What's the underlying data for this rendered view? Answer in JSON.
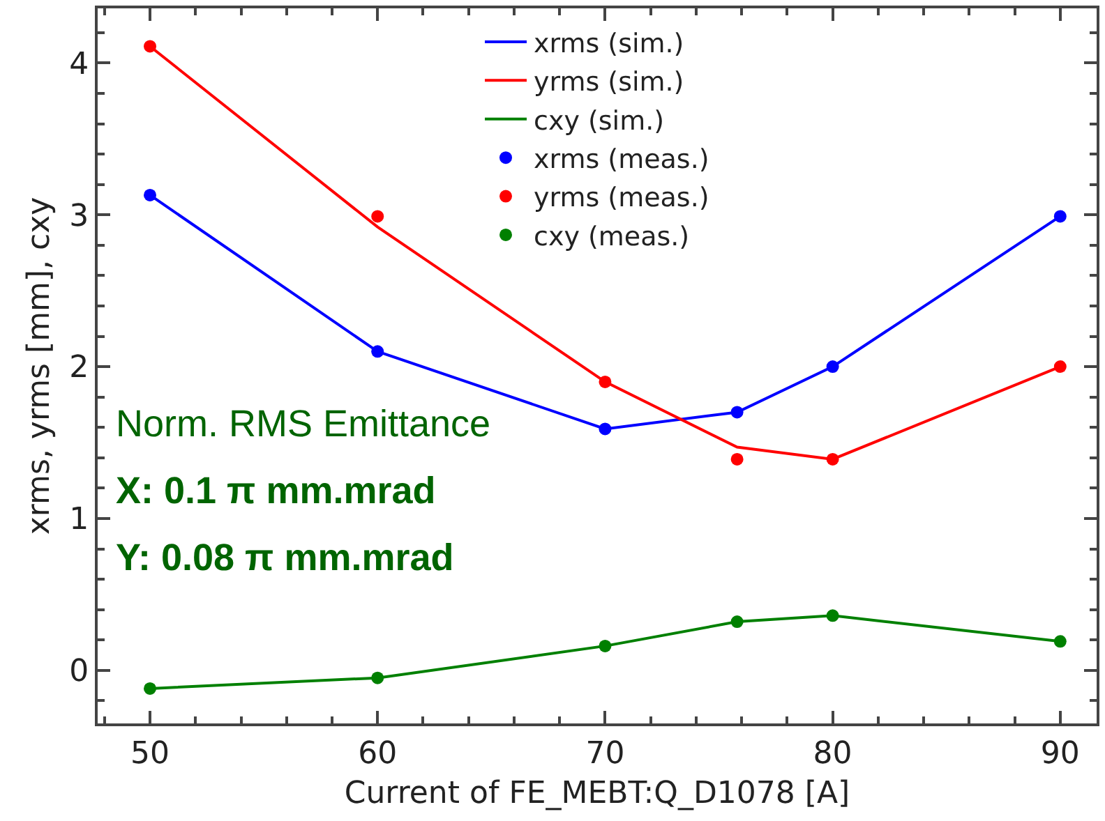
{
  "chart_data": {
    "type": "line",
    "xlabel": "Current of FE_MEBT:Q_D1078 [A]",
    "ylabel": "xrms, yrms [mm], cxy",
    "x": [
      50,
      60,
      70,
      75.8,
      80,
      90
    ],
    "series": [
      {
        "name": "xrms (sim.)",
        "marker": "none",
        "color": "#0000ff",
        "values": [
          3.13,
          2.1,
          1.59,
          1.7,
          2.0,
          2.99
        ]
      },
      {
        "name": "yrms (sim.)",
        "marker": "none",
        "color": "#ff0000",
        "values": [
          4.11,
          2.92,
          1.9,
          1.47,
          1.39,
          2.0
        ]
      },
      {
        "name": "cxy (sim.)",
        "marker": "none",
        "color": "#008000",
        "values": [
          -0.12,
          -0.05,
          0.16,
          0.32,
          0.36,
          0.19
        ]
      },
      {
        "name": "xrms (meas.)",
        "type": "scatter",
        "marker": "circle",
        "color": "#0000ff",
        "values": [
          3.13,
          2.1,
          1.59,
          1.7,
          2.0,
          2.99
        ]
      },
      {
        "name": "yrms (meas.)",
        "type": "scatter",
        "marker": "circle",
        "color": "#ff0000",
        "values": [
          4.11,
          2.99,
          1.9,
          1.39,
          1.39,
          2.0
        ]
      },
      {
        "name": "cxy (meas.)",
        "type": "scatter",
        "marker": "circle",
        "color": "#008000",
        "values": [
          -0.12,
          -0.05,
          0.16,
          0.32,
          0.36,
          0.19
        ]
      }
    ],
    "xlim": [
      47.7,
      91.6
    ],
    "xticks": [
      50,
      60,
      70,
      80,
      90
    ],
    "ylim": [
      -0.35,
      4.36
    ],
    "yticks": [
      0,
      1,
      2,
      3,
      4
    ],
    "grid": false,
    "legend": "top",
    "line_style": "solid",
    "annotations": [
      "Norm. RMS Emittance",
      "X: 0.1 π mm.mrad",
      "Y: 0.08 π mm.mrad"
    ]
  }
}
